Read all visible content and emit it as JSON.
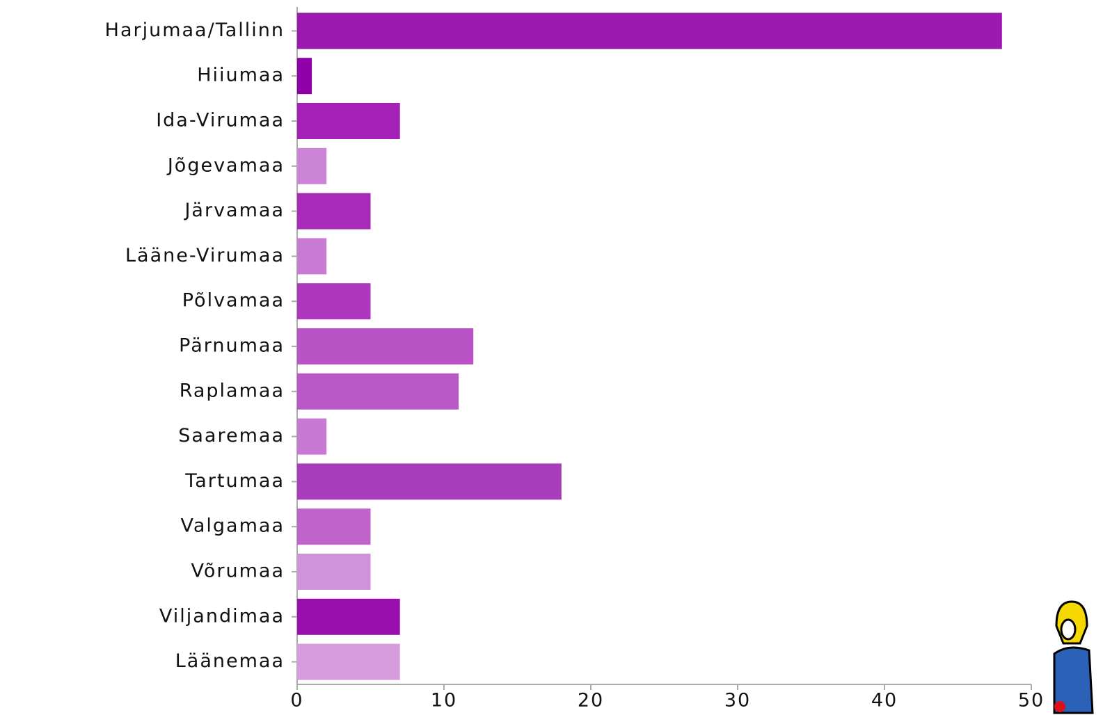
{
  "chart_data": {
    "type": "bar",
    "orientation": "horizontal",
    "categories": [
      "Harjumaa/Tallinn",
      "Hiiumaa",
      "Ida-Virumaa",
      "Jõgevamaa",
      "Järvamaa",
      "Lääne-Virumaa",
      "Põlvamaa",
      "Pärnumaa",
      "Raplamaa",
      "Saaremaa",
      "Tartumaa",
      "Valgamaa",
      "Võrumaa",
      "Viljandimaa",
      "Läänemaa"
    ],
    "values": [
      48,
      1,
      7,
      2,
      5,
      2,
      5,
      12,
      11,
      2,
      18,
      5,
      5,
      7,
      7
    ],
    "colors": [
      "#9c19b0",
      "#9000a8",
      "#a520b5",
      "#cc84d6",
      "#a82ab8",
      "#c97bd4",
      "#ae38bd",
      "#b953c6",
      "#bb58c8",
      "#c879d3",
      "#a93cbb",
      "#c064cc",
      "#d092da",
      "#9a0eb0",
      "#d59bdd"
    ],
    "xlim": [
      0,
      50
    ],
    "xticks": [
      0,
      10,
      20,
      30,
      40,
      50
    ],
    "grid": false
  }
}
